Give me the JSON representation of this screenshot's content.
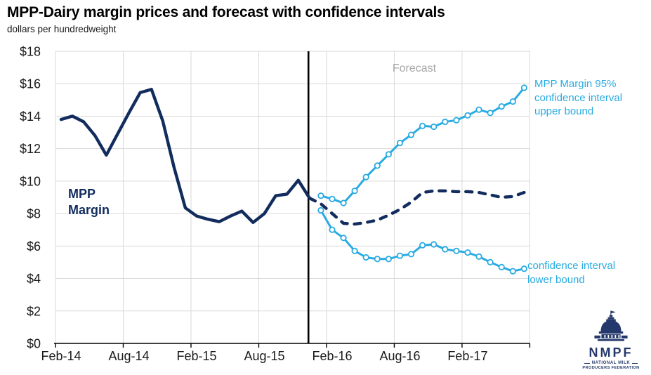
{
  "title": "MPP-Dairy margin prices and forecast with confidence intervals",
  "subtitle": "dollars per hundredweight",
  "colors": {
    "navy": "#122c5e",
    "light_blue": "#29abe2",
    "gridline": "#d9d9d9",
    "axis": "#000000",
    "forecast_gray": "#a6a6a6",
    "logo_navy": "#25386b"
  },
  "annotations": {
    "mpp_margin_label": "MPP\nMargin",
    "forecast_label": "Forecast",
    "upper_bound_label": "MPP Margin 95%\nconfidence interval\nupper bound",
    "lower_bound_label": "confidence interval\nlower bound"
  },
  "logo": {
    "acronym": "NMPF",
    "line1": "NATIONAL MILK",
    "line2": "PRODUCERS FEDERATION"
  },
  "chart_data": {
    "type": "line",
    "x": [
      "Feb-14",
      "Mar-14",
      "Apr-14",
      "May-14",
      "Jun-14",
      "Jul-14",
      "Aug-14",
      "Sep-14",
      "Oct-14",
      "Nov-14",
      "Dec-14",
      "Jan-15",
      "Feb-15",
      "Mar-15",
      "Apr-15",
      "May-15",
      "Jun-15",
      "Jul-15",
      "Aug-15",
      "Sep-15",
      "Oct-15",
      "Nov-15",
      "Dec-15",
      "Jan-16",
      "Feb-16",
      "Mar-16",
      "Apr-16",
      "May-16",
      "Jun-16",
      "Jul-16",
      "Aug-16",
      "Sep-16",
      "Oct-16",
      "Nov-16",
      "Dec-16",
      "Jan-17",
      "Feb-17",
      "Mar-17",
      "Apr-17",
      "May-17",
      "Jun-17",
      "Jul-17"
    ],
    "x_tick_labels": [
      "Feb-14",
      "Aug-14",
      "Feb-15",
      "Aug-15",
      "Feb-16",
      "Aug-16",
      "Feb-17"
    ],
    "ylim": [
      0,
      18
    ],
    "y_ticks": [
      0,
      2,
      4,
      6,
      8,
      10,
      12,
      14,
      16,
      18
    ],
    "y_tick_prefix": "$",
    "grid": true,
    "legend_position": "none",
    "forecast_divider_index": 21.9,
    "series": [
      {
        "name": "MPP Margin (actual)",
        "style": "solid",
        "markers": false,
        "color": "#122c5e",
        "start": 0,
        "values": [
          13.8,
          14.0,
          13.65,
          12.8,
          11.6,
          12.9,
          14.2,
          15.45,
          15.65,
          13.7,
          10.85,
          8.35,
          7.85,
          7.65,
          7.5,
          7.85,
          8.15,
          7.45,
          8.0,
          9.1,
          9.2,
          10.05,
          8.95
        ]
      },
      {
        "name": "MPP Margin forecast",
        "style": "dashed",
        "markers": false,
        "color": "#122c5e",
        "start": 22,
        "values": [
          8.95,
          8.6,
          8.0,
          7.4,
          7.35,
          7.45,
          7.6,
          7.9,
          8.25,
          8.7,
          9.3,
          9.4,
          9.4,
          9.35,
          9.35,
          9.3,
          9.15,
          9.0,
          9.05,
          9.3
        ]
      },
      {
        "name": "MPP Margin 95% confidence interval upper bound",
        "style": "solid",
        "markers": true,
        "color": "#29abe2",
        "start": 23,
        "values": [
          9.1,
          8.9,
          8.65,
          9.4,
          10.25,
          10.95,
          11.65,
          12.35,
          12.85,
          13.4,
          13.35,
          13.65,
          13.75,
          14.05,
          14.4,
          14.2,
          14.6,
          14.9,
          15.75
        ]
      },
      {
        "name": "MPP Margin 95% confidence interval lower bound",
        "style": "solid",
        "markers": true,
        "color": "#29abe2",
        "start": 23,
        "values": [
          8.2,
          7.0,
          6.5,
          5.7,
          5.3,
          5.2,
          5.2,
          5.4,
          5.5,
          6.05,
          6.1,
          5.8,
          5.7,
          5.6,
          5.35,
          5.0,
          4.7,
          4.45,
          4.6
        ]
      }
    ]
  }
}
